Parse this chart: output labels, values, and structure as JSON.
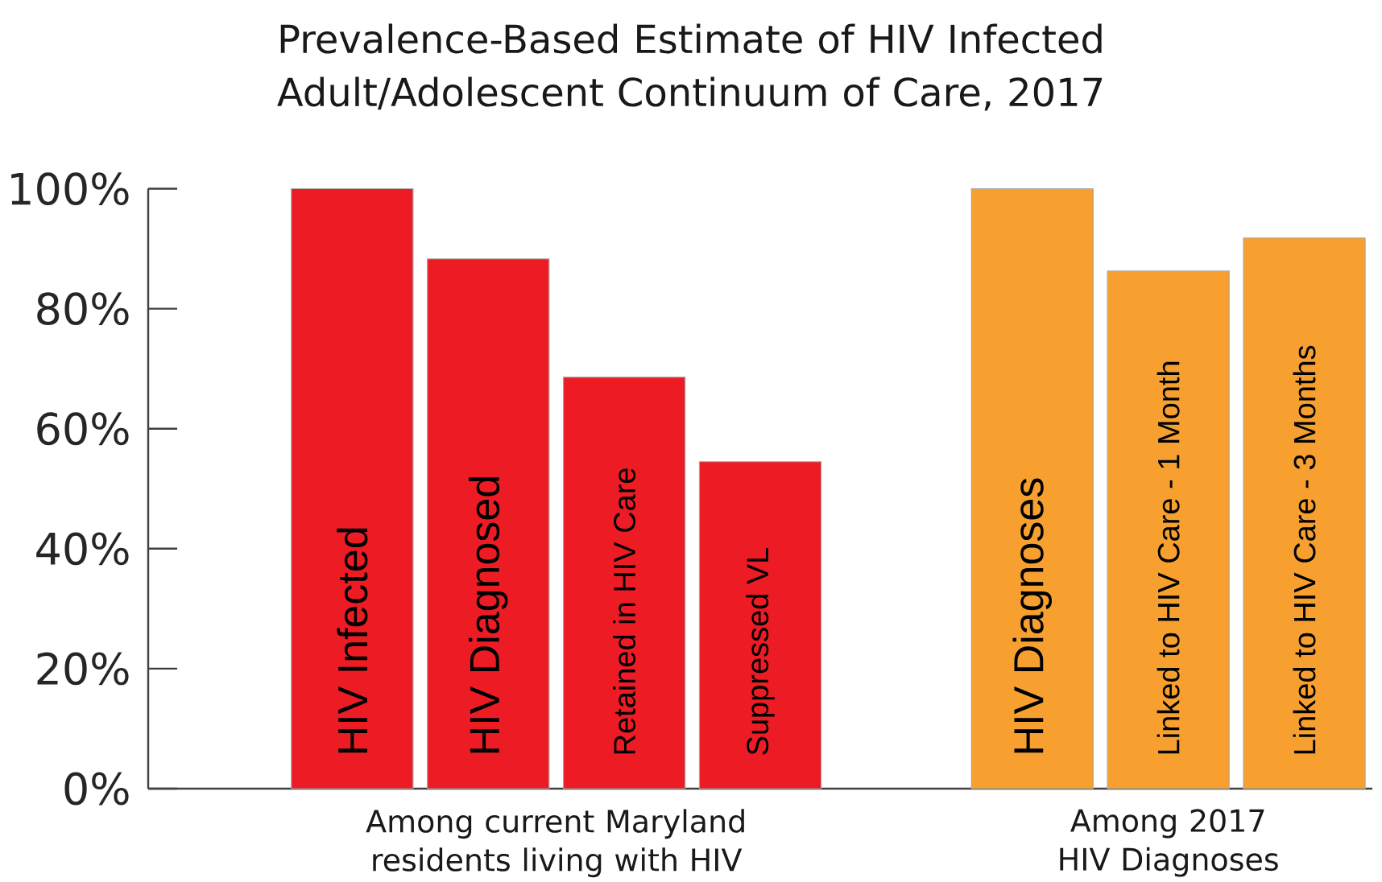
{
  "chart_data": {
    "type": "bar",
    "title": "Prevalence-Based Estimate of HIV Infected Adult/Adolescent Continuum of Care, 2017",
    "categories": [
      "HIV Infected",
      "HIV Diagnosed",
      "Retained in HIV Care",
      "Suppressed VL",
      null,
      "HIV Diagnoses",
      "Linked to HIV Care - 1 Month",
      "Linked to HIV Care - 3 Months"
    ],
    "series": [
      {
        "color": "#ed1c24",
        "values": [
          100,
          88.3,
          68.6,
          54.5,
          null,
          null,
          null,
          null
        ]
      },
      {
        "color": "#f7a030",
        "values": [
          null,
          null,
          null,
          null,
          null,
          100,
          86.3,
          91.8
        ]
      }
    ],
    "annotations": [
      "Among current Maryland residents living with HIV",
      "Among 2017 HIV Diagnoses"
    ],
    "ylim": [
      0,
      100
    ],
    "yticks": [
      {
        "value": 0,
        "label": "0%"
      },
      {
        "value": 20,
        "label": "20%"
      },
      {
        "value": 40,
        "label": "40%"
      },
      {
        "value": 60,
        "label": "60%"
      },
      {
        "value": 80,
        "label": "80%"
      },
      {
        "value": 100,
        "label": "100%"
      }
    ],
    "grid": false
  }
}
